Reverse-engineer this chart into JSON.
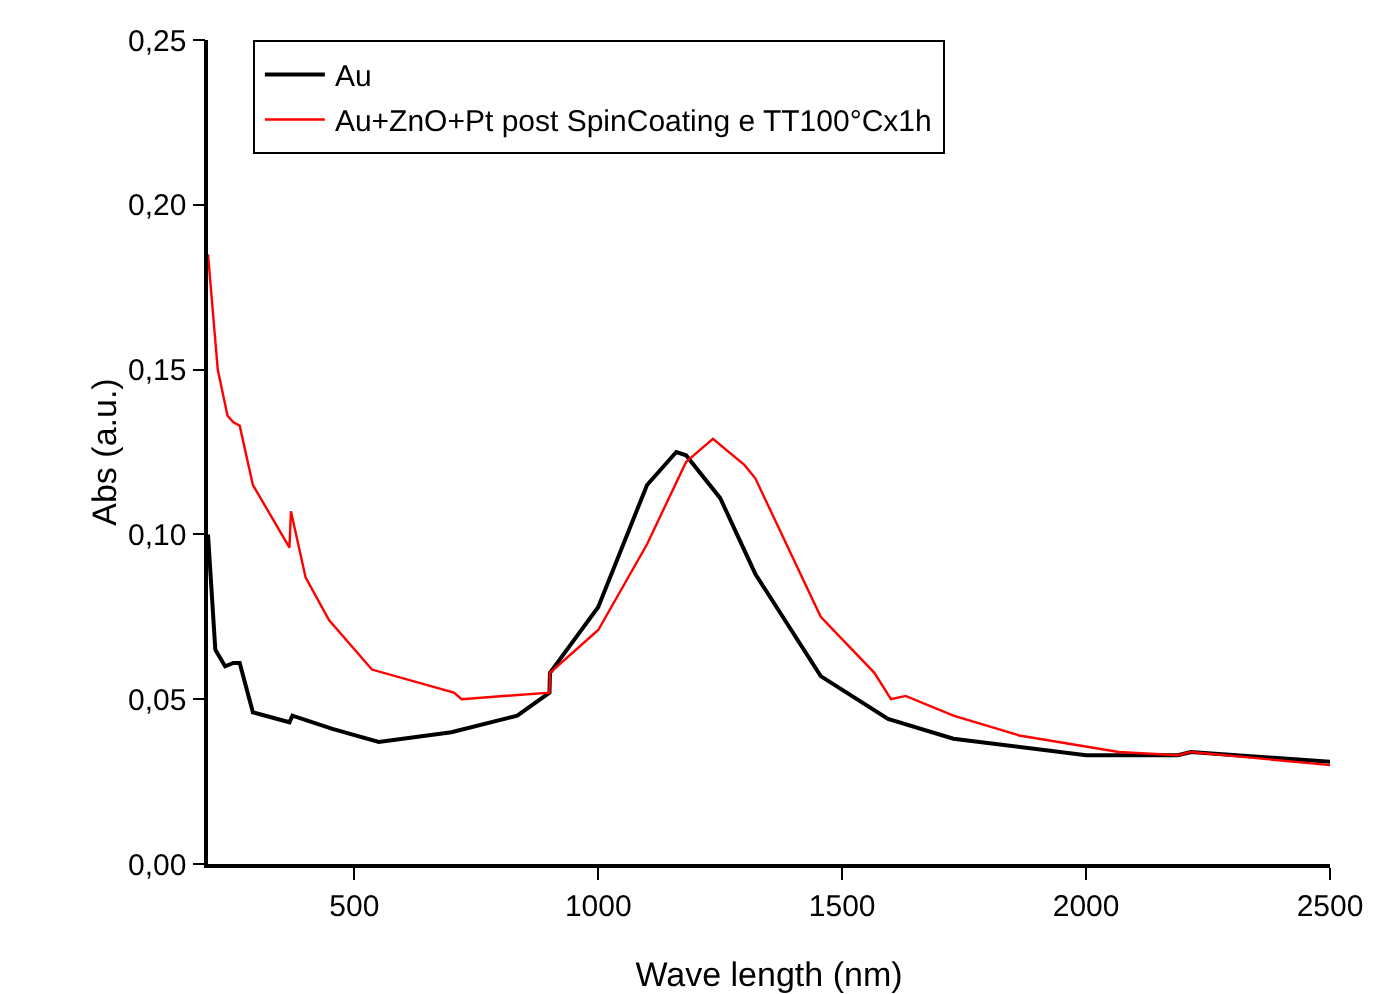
{
  "chart_data": {
    "type": "line",
    "xlabel": "Wave length (nm)",
    "ylabel": "Abs (a.u.)",
    "xlim": [
      200,
      2500
    ],
    "xticks": [
      500,
      1000,
      1500,
      2000,
      2500
    ],
    "ylim": [
      0,
      0.25
    ],
    "yticks": [
      {
        "value": 0,
        "label": "0,00"
      },
      {
        "value": 0.05,
        "label": "0,05"
      },
      {
        "value": 0.1,
        "label": "0,10"
      },
      {
        "value": 0.15,
        "label": "0,15"
      },
      {
        "value": 0.2,
        "label": "0,20"
      },
      {
        "value": 0.25,
        "label": "0,25"
      }
    ],
    "grid": false,
    "legend": "top",
    "marker": "none",
    "line_style": "solid",
    "series": [
      {
        "name": "Au",
        "color": "#000000",
        "x": [
          200,
          215,
          235,
          252,
          265,
          292,
          367,
          373,
          455,
          550,
          699,
          834,
          900,
          901,
          1000,
          1100,
          1160,
          1180,
          1250,
          1322,
          1456,
          1594,
          1728,
          2000,
          2188,
          2215,
          2500
        ],
        "values": [
          0.1,
          0.065,
          0.06,
          0.061,
          0.061,
          0.046,
          0.043,
          0.045,
          0.041,
          0.037,
          0.04,
          0.045,
          0.052,
          0.058,
          0.078,
          0.115,
          0.125,
          0.124,
          0.111,
          0.088,
          0.057,
          0.044,
          0.038,
          0.033,
          0.033,
          0.034,
          0.031
        ]
      },
      {
        "name": "Au+ZnO+Pt post SpinCoating e TT100°Cx1h",
        "color": "#ff0000",
        "x": [
          200,
          220,
          240,
          252,
          265,
          292,
          367,
          370,
          400,
          448,
          536,
          704,
          720,
          900,
          901,
          1000,
          1100,
          1180,
          1235,
          1300,
          1322,
          1456,
          1566,
          1600,
          1630,
          1728,
          1863,
          2067,
          2188,
          2215,
          2500
        ],
        "values": [
          0.185,
          0.15,
          0.136,
          0.134,
          0.133,
          0.115,
          0.096,
          0.107,
          0.087,
          0.074,
          0.059,
          0.052,
          0.05,
          0.052,
          0.058,
          0.071,
          0.097,
          0.122,
          0.129,
          0.121,
          0.117,
          0.075,
          0.058,
          0.05,
          0.051,
          0.045,
          0.039,
          0.034,
          0.033,
          0.034,
          0.03
        ]
      }
    ]
  }
}
